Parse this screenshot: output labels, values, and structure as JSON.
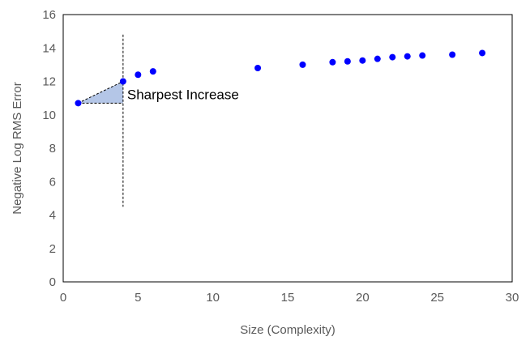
{
  "chart_data": {
    "type": "scatter",
    "title": "",
    "xlabel": "Size (Complexity)",
    "ylabel": "Negative Log RMS Error",
    "xlim": [
      0,
      30
    ],
    "ylim": [
      0,
      16
    ],
    "x_ticks": [
      "0",
      "5",
      "10",
      "15",
      "20",
      "25",
      "30"
    ],
    "y_ticks": [
      "0",
      "2",
      "4",
      "6",
      "8",
      "10",
      "12",
      "14",
      "16"
    ],
    "grid": false,
    "legend": "none",
    "series": [
      {
        "color": "#0000ff",
        "points": [
          {
            "x": 1,
            "y": 10.7
          },
          {
            "x": 4,
            "y": 12.0
          },
          {
            "x": 5,
            "y": 12.4
          },
          {
            "x": 6,
            "y": 12.6
          },
          {
            "x": 13,
            "y": 12.8
          },
          {
            "x": 16,
            "y": 13.0
          },
          {
            "x": 18,
            "y": 13.15
          },
          {
            "x": 19,
            "y": 13.2
          },
          {
            "x": 20,
            "y": 13.25
          },
          {
            "x": 21,
            "y": 13.35
          },
          {
            "x": 22,
            "y": 13.45
          },
          {
            "x": 23,
            "y": 13.5
          },
          {
            "x": 24,
            "y": 13.55
          },
          {
            "x": 26,
            "y": 13.6
          },
          {
            "x": 28,
            "y": 13.7
          }
        ]
      }
    ],
    "annotations": {
      "text": "Sharpest Increase",
      "triangle": {
        "x1": 1,
        "y1": 10.7,
        "x2": 4,
        "y2": 12.0,
        "fill": "#b4c6e7"
      },
      "vertical_line": {
        "x": 4,
        "y_from": 4.5,
        "y_to": 14.8
      }
    }
  }
}
